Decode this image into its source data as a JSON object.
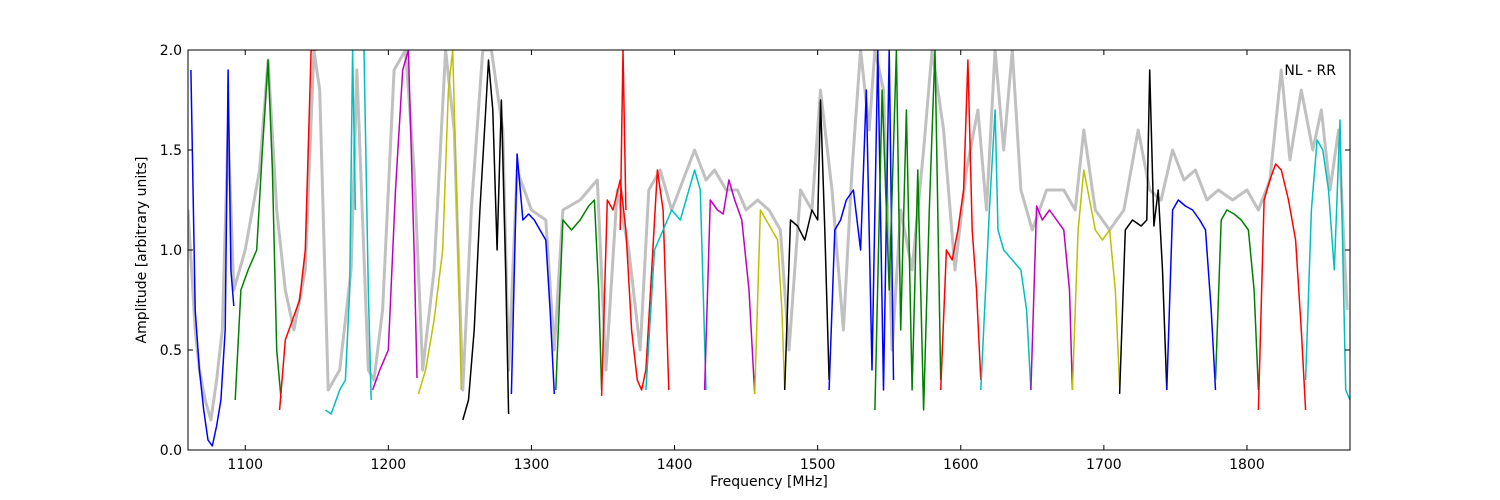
{
  "chart_data": {
    "type": "line",
    "title": "",
    "xlabel": "Frequency [MHz]",
    "ylabel": "Amplitude [arbitrary units]",
    "xlim": [
      1060,
      1872
    ],
    "ylim": [
      0.0,
      2.0
    ],
    "grid": false,
    "legend": "none",
    "annotation": {
      "text": "NL - RR",
      "placement": "top-right"
    },
    "x_ticks": [
      1100,
      1200,
      1300,
      1400,
      1500,
      1600,
      1700,
      1800
    ],
    "x_tick_labels": [
      "1100",
      "1200",
      "1300",
      "1400",
      "1500",
      "1600",
      "1700",
      "1800"
    ],
    "y_ticks": [
      0.0,
      0.5,
      1.0,
      1.5,
      2.0
    ],
    "y_tick_labels": [
      "0.0",
      "0.5",
      "1.0",
      "1.5",
      "2.0"
    ],
    "background_series": {
      "color": "#c0c0c0",
      "x": [
        1060,
        1065,
        1068,
        1072,
        1076,
        1080,
        1084,
        1088,
        1092,
        1100,
        1110,
        1116,
        1122,
        1128,
        1134,
        1142,
        1148,
        1152,
        1158,
        1166,
        1174,
        1178,
        1186,
        1190,
        1196,
        1204,
        1212,
        1218,
        1224,
        1232,
        1240,
        1246,
        1252,
        1258,
        1266,
        1272,
        1280,
        1284,
        1290,
        1300,
        1310,
        1316,
        1322,
        1334,
        1346,
        1352,
        1360,
        1368,
        1376,
        1382,
        1390,
        1398,
        1406,
        1414,
        1422,
        1428,
        1436,
        1444,
        1450,
        1458,
        1466,
        1474,
        1480,
        1488,
        1496,
        1502,
        1510,
        1518,
        1524,
        1530,
        1536,
        1540,
        1546,
        1552,
        1558,
        1566,
        1574,
        1580,
        1588,
        1596,
        1604,
        1612,
        1618,
        1624,
        1630,
        1636,
        1642,
        1650,
        1660,
        1672,
        1680,
        1686,
        1694,
        1704,
        1714,
        1724,
        1732,
        1740,
        1748,
        1756,
        1764,
        1772,
        1780,
        1790,
        1800,
        1808,
        1816,
        1824,
        1830,
        1838,
        1846,
        1852,
        1858,
        1864,
        1870
      ],
      "y": [
        1.2,
        0.6,
        0.4,
        0.25,
        0.15,
        0.35,
        0.6,
        1.6,
        0.8,
        1.0,
        1.4,
        1.95,
        1.2,
        0.8,
        0.6,
        0.9,
        2.0,
        1.8,
        0.3,
        0.4,
        0.9,
        1.9,
        0.4,
        0.35,
        0.7,
        1.9,
        2.0,
        1.4,
        0.4,
        0.9,
        2.0,
        1.6,
        0.3,
        1.2,
        2.0,
        2.0,
        1.6,
        0.4,
        1.4,
        1.2,
        1.15,
        0.5,
        1.2,
        1.25,
        1.35,
        0.4,
        1.3,
        1.0,
        0.5,
        1.3,
        1.4,
        1.2,
        1.35,
        1.5,
        1.35,
        1.4,
        1.3,
        1.3,
        1.2,
        1.25,
        1.2,
        1.1,
        0.5,
        1.3,
        1.2,
        1.8,
        1.3,
        0.6,
        1.4,
        2.0,
        1.6,
        2.0,
        1.8,
        0.5,
        1.2,
        0.9,
        1.5,
        2.0,
        1.6,
        0.9,
        1.4,
        1.7,
        1.2,
        2.0,
        1.5,
        2.0,
        1.3,
        1.1,
        1.3,
        1.3,
        1.2,
        1.6,
        1.2,
        1.1,
        1.2,
        1.6,
        1.3,
        1.25,
        1.5,
        1.35,
        1.4,
        1.25,
        1.3,
        1.25,
        1.3,
        1.2,
        1.35,
        1.9,
        1.45,
        1.8,
        1.5,
        1.7,
        1.3,
        1.6,
        0.7
      ]
    },
    "series": [
      {
        "color": "#0000ff",
        "x": [
          1062,
          1065,
          1068,
          1071,
          1074,
          1077,
          1080,
          1083,
          1086,
          1088,
          1090,
          1092
        ],
        "y": [
          1.9,
          0.7,
          0.4,
          0.2,
          0.05,
          0.02,
          0.12,
          0.25,
          0.6,
          1.9,
          0.9,
          0.72
        ]
      },
      {
        "color": "#008000",
        "x": [
          1093,
          1097,
          1102,
          1108,
          1112,
          1116,
          1119,
          1122,
          1125
        ],
        "y": [
          0.25,
          0.8,
          0.9,
          1.0,
          1.5,
          1.95,
          1.4,
          0.5,
          0.26
        ]
      },
      {
        "color": "#ff0000",
        "x": [
          1124,
          1128,
          1133,
          1138,
          1142,
          1146,
          1150
        ],
        "y": [
          0.2,
          0.55,
          0.65,
          0.75,
          1.0,
          2.0,
          2.0
        ]
      },
      {
        "color": "#00bfbf",
        "x": [
          1156,
          1160,
          1166,
          1170,
          1173,
          1175,
          1177
        ],
        "y": [
          0.2,
          0.18,
          0.3,
          0.35,
          0.8,
          2.0,
          1.2
        ]
      },
      {
        "color": "#00bfbf",
        "x": [
          1183,
          1186,
          1188
        ],
        "y": [
          2.0,
          0.8,
          0.25
        ]
      },
      {
        "color": "#bf00bf",
        "x": [
          1189,
          1194,
          1200,
          1205,
          1210,
          1214,
          1218,
          1220
        ],
        "y": [
          0.3,
          0.4,
          0.5,
          1.3,
          1.9,
          2.0,
          1.0,
          0.36
        ]
      },
      {
        "color": "#bfbf00",
        "x": [
          1221,
          1226,
          1232,
          1238,
          1242,
          1245,
          1248,
          1251
        ],
        "y": [
          0.28,
          0.4,
          0.65,
          1.0,
          1.8,
          2.0,
          1.2,
          0.3
        ]
      },
      {
        "color": "#000000",
        "x": [
          1252,
          1256,
          1260,
          1264,
          1268,
          1270,
          1273,
          1276,
          1279,
          1282,
          1284
        ],
        "y": [
          0.15,
          0.25,
          0.6,
          1.2,
          1.7,
          1.95,
          1.7,
          1.0,
          1.75,
          0.9,
          0.18
        ]
      },
      {
        "color": "#0000ff",
        "x": [
          1286,
          1290,
          1294,
          1298,
          1302,
          1306,
          1310,
          1313,
          1316
        ],
        "y": [
          0.28,
          1.48,
          1.15,
          1.18,
          1.15,
          1.1,
          1.05,
          0.7,
          0.28
        ]
      },
      {
        "color": "#008000",
        "x": [
          1317,
          1322,
          1328,
          1334,
          1340,
          1344,
          1347,
          1349
        ],
        "y": [
          0.3,
          1.15,
          1.1,
          1.15,
          1.22,
          1.25,
          0.8,
          0.3
        ]
      },
      {
        "color": "#ff0000",
        "x": [
          1349,
          1353,
          1357,
          1362,
          1366,
          1370,
          1374,
          1377,
          1380,
          1384,
          1388,
          1392,
          1396
        ],
        "y": [
          0.27,
          1.25,
          1.2,
          1.35,
          1.1,
          0.6,
          0.35,
          0.3,
          0.4,
          0.9,
          1.4,
          1.2,
          0.3
        ]
      },
      {
        "color": "#ff0000",
        "x": [
          1362,
          1364,
          1366
        ],
        "y": [
          1.1,
          2.0,
          1.2
        ]
      },
      {
        "color": "#00bfbf",
        "x": [
          1380,
          1386,
          1392,
          1398,
          1404,
          1410,
          1414,
          1418,
          1422
        ],
        "y": [
          0.3,
          1.0,
          1.1,
          1.2,
          1.15,
          1.3,
          1.4,
          1.3,
          0.3
        ]
      },
      {
        "color": "#bf00bf",
        "x": [
          1421,
          1425,
          1430,
          1434,
          1438,
          1442,
          1447,
          1452,
          1456
        ],
        "y": [
          0.3,
          1.25,
          1.2,
          1.18,
          1.35,
          1.25,
          1.15,
          0.8,
          0.28
        ]
      },
      {
        "color": "#bfbf00",
        "x": [
          1456,
          1460,
          1464,
          1468,
          1472,
          1475,
          1477
        ],
        "y": [
          0.28,
          1.2,
          1.15,
          1.1,
          1.05,
          0.7,
          0.3
        ]
      },
      {
        "color": "#000000",
        "x": [
          1477,
          1481,
          1486,
          1491,
          1496,
          1500,
          1502,
          1505,
          1508
        ],
        "y": [
          0.3,
          1.15,
          1.12,
          1.05,
          1.2,
          1.15,
          1.75,
          1.1,
          0.35
        ]
      },
      {
        "color": "#0000ff",
        "x": [
          1508,
          1512,
          1516,
          1520,
          1525,
          1530,
          1534,
          1538,
          1542,
          1546,
          1550,
          1553
        ],
        "y": [
          0.3,
          1.1,
          1.15,
          1.25,
          1.3,
          1.0,
          1.8,
          0.4,
          2.0,
          0.3,
          2.0,
          0.35
        ]
      },
      {
        "color": "#008000",
        "x": [
          1540,
          1545,
          1550,
          1555,
          1558,
          1562,
          1566,
          1570,
          1574,
          1578,
          1582,
          1586
        ],
        "y": [
          0.2,
          1.8,
          0.8,
          2.0,
          0.6,
          1.7,
          0.3,
          1.4,
          0.2,
          1.2,
          2.0,
          0.35
        ]
      },
      {
        "color": "#ff0000",
        "x": [
          1586,
          1590,
          1594,
          1598,
          1602,
          1605,
          1608,
          1611,
          1614
        ],
        "y": [
          0.3,
          1.0,
          0.95,
          1.1,
          1.3,
          1.95,
          1.1,
          0.8,
          0.35
        ]
      },
      {
        "color": "#00bfbf",
        "x": [
          1614,
          1620,
          1624,
          1626,
          1630,
          1636,
          1642,
          1646,
          1649
        ],
        "y": [
          0.3,
          1.2,
          1.7,
          1.1,
          1.0,
          0.95,
          0.9,
          0.7,
          0.3
        ]
      },
      {
        "color": "#bf00bf",
        "x": [
          1649,
          1653,
          1657,
          1662,
          1667,
          1672,
          1676,
          1678
        ],
        "y": [
          0.3,
          1.22,
          1.15,
          1.2,
          1.15,
          1.1,
          0.8,
          0.3
        ]
      },
      {
        "color": "#bfbf00",
        "x": [
          1678,
          1682,
          1686,
          1690,
          1694,
          1699,
          1704,
          1708,
          1711
        ],
        "y": [
          0.3,
          1.1,
          1.4,
          1.25,
          1.1,
          1.05,
          1.1,
          0.8,
          0.32
        ]
      },
      {
        "color": "#000000",
        "x": [
          1711,
          1715,
          1720,
          1726,
          1730,
          1732,
          1735,
          1738,
          1741,
          1744
        ],
        "y": [
          0.28,
          1.1,
          1.15,
          1.12,
          1.15,
          1.9,
          1.12,
          1.3,
          0.9,
          0.3
        ]
      },
      {
        "color": "#0000ff",
        "x": [
          1744,
          1748,
          1752,
          1757,
          1762,
          1767,
          1771,
          1775,
          1778
        ],
        "y": [
          0.3,
          1.2,
          1.25,
          1.22,
          1.2,
          1.15,
          1.1,
          0.7,
          0.3
        ]
      },
      {
        "color": "#008000",
        "x": [
          1778,
          1782,
          1786,
          1791,
          1796,
          1801,
          1805,
          1808
        ],
        "y": [
          0.35,
          1.15,
          1.2,
          1.18,
          1.15,
          1.1,
          0.8,
          0.3
        ]
      },
      {
        "color": "#ff0000",
        "x": [
          1808,
          1812,
          1816,
          1820,
          1824,
          1829,
          1834,
          1838,
          1841
        ],
        "y": [
          0.2,
          1.25,
          1.35,
          1.43,
          1.4,
          1.25,
          1.05,
          0.6,
          0.2
        ]
      },
      {
        "color": "#00bfbf",
        "x": [
          1841,
          1845,
          1849,
          1853,
          1857,
          1861,
          1865,
          1869,
          1872
        ],
        "y": [
          0.35,
          1.2,
          1.55,
          1.5,
          1.3,
          0.9,
          1.65,
          0.3,
          0.25
        ]
      }
    ]
  }
}
